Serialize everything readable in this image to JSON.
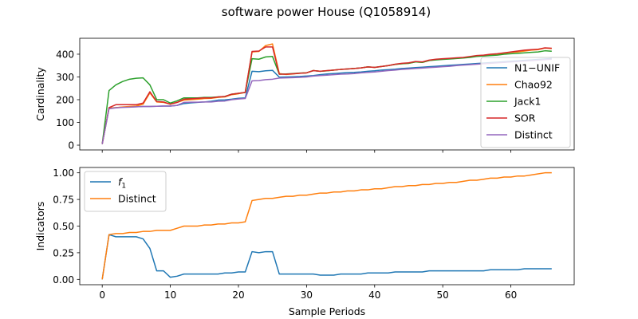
{
  "title": "software power House (Q1058914)",
  "chart_data": [
    {
      "type": "line",
      "ylabel": "Cardinality",
      "xlim": [
        -3.3,
        69.3
      ],
      "ylim": [
        -21,
        470
      ],
      "xticks": [
        0,
        10,
        20,
        30,
        40,
        50,
        60
      ],
      "yticks": [
        0,
        100,
        200,
        300,
        400
      ],
      "legend": "right",
      "series": [
        {
          "name": "N1−UNIF",
          "color": "#1f77b4",
          "values": [
            5,
            163,
            165,
            167,
            168,
            169,
            170,
            170,
            171,
            172,
            172,
            175,
            183,
            186,
            188,
            190,
            193,
            198,
            199,
            202,
            206,
            208,
            325,
            323,
            327,
            329,
            299,
            300,
            301,
            302,
            304,
            306,
            310,
            313,
            315,
            317,
            319,
            320,
            322,
            325,
            327,
            330,
            332,
            334,
            337,
            339,
            341,
            343,
            345,
            347,
            349,
            351,
            353,
            355,
            357,
            359,
            361,
            363,
            365,
            367,
            369,
            371,
            373,
            375,
            377,
            379,
            381
          ]
        },
        {
          "name": "Chao92",
          "color": "#ff7f0e",
          "values": [
            5,
            163,
            165,
            168,
            170,
            172,
            180,
            230,
            190,
            188,
            180,
            188,
            198,
            200,
            202,
            205,
            206,
            210,
            212,
            222,
            226,
            232,
            410,
            412,
            438,
            445,
            315,
            311,
            313,
            316,
            318,
            328,
            325,
            327,
            330,
            333,
            335,
            337,
            340,
            344,
            342,
            346,
            350,
            355,
            358,
            360,
            366,
            364,
            372,
            376,
            378,
            380,
            382,
            384,
            388,
            392,
            394,
            397,
            398,
            404,
            408,
            410,
            414,
            418,
            420,
            427,
            425
          ]
        },
        {
          "name": "Jack1",
          "color": "#2ca02c",
          "values": [
            5,
            240,
            265,
            280,
            290,
            294,
            296,
            265,
            200,
            200,
            185,
            195,
            208,
            208,
            208,
            210,
            210,
            212,
            214,
            224,
            228,
            232,
            380,
            378,
            388,
            390,
            312,
            313,
            315,
            317,
            318,
            328,
            325,
            327,
            330,
            333,
            335,
            337,
            340,
            344,
            342,
            346,
            350,
            355,
            358,
            360,
            366,
            364,
            372,
            375,
            377,
            379,
            381,
            383,
            386,
            390,
            392,
            394,
            396,
            400,
            402,
            404,
            406,
            408,
            410,
            415,
            413
          ]
        },
        {
          "name": "SOR",
          "color": "#d62728",
          "values": [
            5,
            165,
            178,
            178,
            178,
            178,
            185,
            235,
            192,
            190,
            180,
            188,
            202,
            204,
            206,
            208,
            208,
            212,
            214,
            224,
            228,
            232,
            412,
            414,
            432,
            432,
            312,
            312,
            314,
            316,
            318,
            328,
            325,
            328,
            330,
            333,
            335,
            337,
            340,
            344,
            342,
            346,
            350,
            356,
            360,
            362,
            368,
            366,
            374,
            378,
            380,
            382,
            384,
            386,
            390,
            394,
            396,
            400,
            402,
            406,
            410,
            414,
            418,
            420,
            422,
            428,
            426
          ]
        },
        {
          "name": "Distinct",
          "color": "#9467bd",
          "values": [
            5,
            160,
            164,
            166,
            167,
            169,
            170,
            170,
            171,
            172,
            172,
            175,
            188,
            189,
            189,
            190,
            190,
            193,
            194,
            200,
            203,
            205,
            283,
            284,
            288,
            290,
            295,
            296,
            297,
            298,
            300,
            304,
            306,
            308,
            310,
            312,
            313,
            315,
            318,
            320,
            322,
            325,
            328,
            330,
            333,
            335,
            337,
            339,
            341,
            343,
            345,
            347,
            350,
            352,
            354,
            356,
            358,
            360,
            362,
            364,
            366,
            368,
            370,
            372,
            374,
            376,
            378
          ]
        }
      ]
    },
    {
      "type": "line",
      "xlabel": "Sample Periods",
      "ylabel": "Indicators",
      "xlim": [
        -3.3,
        69.3
      ],
      "ylim": [
        -0.05,
        1.05
      ],
      "xticks": [
        0,
        10,
        20,
        30,
        40,
        50,
        60
      ],
      "yticks": [
        "0.00",
        "0.25",
        "0.50",
        "0.75",
        "1.00"
      ],
      "legend": "top-left",
      "series": [
        {
          "name": "f",
          "name_sub": "1",
          "color": "#1f77b4",
          "values": [
            0.0,
            0.42,
            0.4,
            0.4,
            0.4,
            0.4,
            0.38,
            0.29,
            0.08,
            0.08,
            0.02,
            0.03,
            0.05,
            0.05,
            0.05,
            0.05,
            0.05,
            0.05,
            0.06,
            0.06,
            0.07,
            0.07,
            0.26,
            0.25,
            0.26,
            0.26,
            0.05,
            0.05,
            0.05,
            0.05,
            0.05,
            0.05,
            0.04,
            0.04,
            0.04,
            0.05,
            0.05,
            0.05,
            0.05,
            0.06,
            0.06,
            0.06,
            0.06,
            0.07,
            0.07,
            0.07,
            0.07,
            0.07,
            0.08,
            0.08,
            0.08,
            0.08,
            0.08,
            0.08,
            0.08,
            0.08,
            0.08,
            0.09,
            0.09,
            0.09,
            0.09,
            0.09,
            0.1,
            0.1,
            0.1,
            0.1,
            0.1
          ]
        },
        {
          "name": "Distinct",
          "color": "#ff7f0e",
          "values": [
            0.0,
            0.42,
            0.43,
            0.43,
            0.44,
            0.44,
            0.45,
            0.45,
            0.46,
            0.46,
            0.46,
            0.48,
            0.5,
            0.5,
            0.5,
            0.51,
            0.51,
            0.52,
            0.52,
            0.53,
            0.53,
            0.54,
            0.74,
            0.75,
            0.76,
            0.76,
            0.77,
            0.78,
            0.78,
            0.79,
            0.79,
            0.8,
            0.81,
            0.81,
            0.82,
            0.82,
            0.83,
            0.83,
            0.84,
            0.84,
            0.85,
            0.85,
            0.86,
            0.87,
            0.87,
            0.88,
            0.88,
            0.89,
            0.89,
            0.9,
            0.9,
            0.91,
            0.91,
            0.92,
            0.93,
            0.93,
            0.94,
            0.95,
            0.95,
            0.96,
            0.96,
            0.97,
            0.97,
            0.98,
            0.99,
            1.0,
            1.0
          ]
        }
      ]
    }
  ]
}
